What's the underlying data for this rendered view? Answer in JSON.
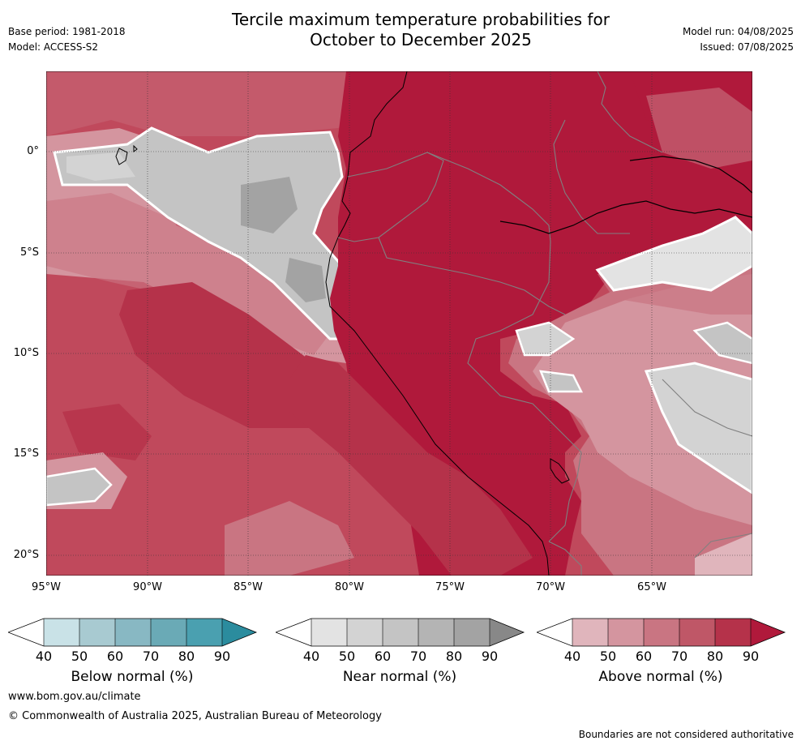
{
  "header": {
    "title_line1": "Tercile maximum temperature probabilities for",
    "title_line2": "October to December 2025",
    "base_period": "Base period: 1981-2018",
    "model": "Model: ACCESS-S2",
    "model_run": "Model run: 04/08/2025",
    "issued": "Issued: 07/08/2025"
  },
  "map": {
    "lat_labels": [
      "0°",
      "5°S",
      "10°S",
      "15°S",
      "20°S"
    ],
    "lon_labels": [
      "95°W",
      "90°W",
      "85°W",
      "80°W",
      "75°W",
      "70°W",
      "65°W"
    ],
    "region": "Eastern Pacific and western South America (Ecuador, Peru, Bolivia, Brazil)"
  },
  "legends": [
    {
      "title": "Below normal (%)",
      "ticks": [
        "40",
        "50",
        "60",
        "70",
        "80",
        "90"
      ],
      "colors": [
        "#ffffff",
        "#c9e2e7",
        "#a8cad1",
        "#88b8c3",
        "#6aaab6",
        "#4aa0b0",
        "#2b8c9e"
      ]
    },
    {
      "title": "Near normal (%)",
      "ticks": [
        "40",
        "50",
        "60",
        "70",
        "80",
        "90"
      ],
      "colors": [
        "#ffffff",
        "#e3e3e3",
        "#d3d3d3",
        "#c4c4c4",
        "#b4b4b4",
        "#a3a3a3",
        "#888888"
      ]
    },
    {
      "title": "Above normal (%)",
      "ticks": [
        "40",
        "50",
        "60",
        "70",
        "80",
        "90"
      ],
      "colors": [
        "#ffffff",
        "#e0b5bc",
        "#d4959f",
        "#c97582",
        "#bf5767",
        "#b5324a",
        "#b0193b"
      ]
    }
  ],
  "footer": {
    "website": "www.bom.gov.au/climate",
    "copyright": "© Commonwealth of Australia 2025, Australian Bureau of Meteorology",
    "disclaimer": "Boundaries are not considered authoritative"
  }
}
